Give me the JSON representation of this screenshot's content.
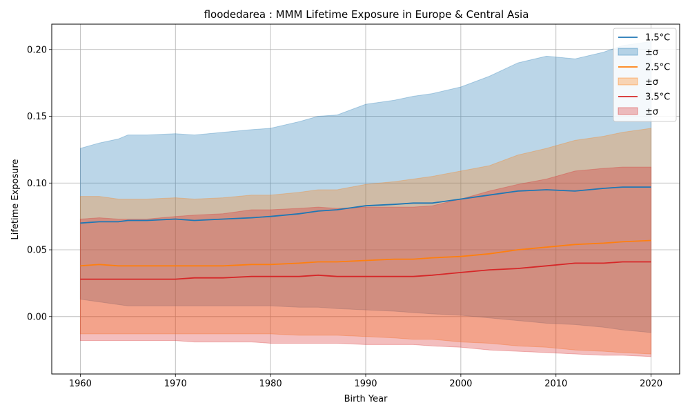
{
  "chart_data": {
    "type": "line",
    "title": "floodedarea : MMM Lifetime Exposure in Europe & Central Asia",
    "xlabel": "Birth Year",
    "ylabel": "Lifetime Exposure",
    "xlim": [
      1957,
      2023
    ],
    "ylim": [
      -0.043,
      0.219
    ],
    "xticks": [
      1960,
      1970,
      1980,
      1990,
      2000,
      2010,
      2020
    ],
    "yticks": [
      0.0,
      0.05,
      0.1,
      0.15,
      0.2
    ],
    "ytick_labels": [
      "0.00",
      "0.05",
      "0.10",
      "0.15",
      "0.20"
    ],
    "grid": true,
    "legend_position": "top-right",
    "x": [
      1960,
      1962,
      1964,
      1965,
      1967,
      1970,
      1972,
      1975,
      1978,
      1980,
      1983,
      1985,
      1987,
      1990,
      1993,
      1995,
      1997,
      2000,
      2003,
      2006,
      2009,
      2012,
      2015,
      2017,
      2020
    ],
    "series": [
      {
        "name": "1.5°C",
        "band_label": "±σ",
        "color": "#1f77b4",
        "values": [
          0.07,
          0.071,
          0.071,
          0.072,
          0.072,
          0.073,
          0.072,
          0.073,
          0.074,
          0.075,
          0.077,
          0.079,
          0.08,
          0.083,
          0.084,
          0.085,
          0.085,
          0.088,
          0.091,
          0.094,
          0.095,
          0.094,
          0.096,
          0.097,
          0.097
        ],
        "upper": [
          0.126,
          0.13,
          0.133,
          0.136,
          0.136,
          0.137,
          0.136,
          0.138,
          0.14,
          0.141,
          0.146,
          0.15,
          0.151,
          0.159,
          0.162,
          0.165,
          0.167,
          0.172,
          0.18,
          0.19,
          0.195,
          0.193,
          0.198,
          0.203,
          0.206
        ],
        "lower": [
          0.013,
          0.011,
          0.009,
          0.008,
          0.008,
          0.008,
          0.008,
          0.008,
          0.008,
          0.008,
          0.007,
          0.007,
          0.006,
          0.005,
          0.004,
          0.003,
          0.002,
          0.001,
          -0.001,
          -0.003,
          -0.005,
          -0.006,
          -0.008,
          -0.01,
          -0.012
        ]
      },
      {
        "name": "2.5°C",
        "band_label": "±σ",
        "color": "#ff7f0e",
        "values": [
          0.038,
          0.039,
          0.038,
          0.038,
          0.038,
          0.038,
          0.038,
          0.038,
          0.039,
          0.039,
          0.04,
          0.041,
          0.041,
          0.042,
          0.043,
          0.043,
          0.044,
          0.045,
          0.047,
          0.05,
          0.052,
          0.054,
          0.055,
          0.056,
          0.057
        ],
        "upper": [
          0.09,
          0.09,
          0.088,
          0.088,
          0.088,
          0.089,
          0.088,
          0.089,
          0.091,
          0.091,
          0.093,
          0.095,
          0.095,
          0.099,
          0.101,
          0.103,
          0.105,
          0.109,
          0.113,
          0.121,
          0.126,
          0.132,
          0.135,
          0.138,
          0.141
        ],
        "lower": [
          -0.013,
          -0.013,
          -0.013,
          -0.013,
          -0.013,
          -0.013,
          -0.013,
          -0.013,
          -0.013,
          -0.013,
          -0.014,
          -0.014,
          -0.014,
          -0.015,
          -0.016,
          -0.017,
          -0.017,
          -0.019,
          -0.02,
          -0.022,
          -0.023,
          -0.025,
          -0.026,
          -0.027,
          -0.028
        ]
      },
      {
        "name": "3.5°C",
        "band_label": "±σ",
        "color": "#d62728",
        "values": [
          0.028,
          0.028,
          0.028,
          0.028,
          0.028,
          0.028,
          0.029,
          0.029,
          0.03,
          0.03,
          0.03,
          0.031,
          0.03,
          0.03,
          0.03,
          0.03,
          0.031,
          0.033,
          0.035,
          0.036,
          0.038,
          0.04,
          0.04,
          0.041,
          0.041
        ],
        "upper": [
          0.073,
          0.074,
          0.073,
          0.073,
          0.073,
          0.075,
          0.076,
          0.077,
          0.08,
          0.08,
          0.081,
          0.082,
          0.081,
          0.082,
          0.082,
          0.082,
          0.083,
          0.088,
          0.094,
          0.099,
          0.103,
          0.109,
          0.111,
          0.112,
          0.112
        ],
        "lower": [
          -0.018,
          -0.018,
          -0.018,
          -0.018,
          -0.018,
          -0.018,
          -0.019,
          -0.019,
          -0.019,
          -0.02,
          -0.02,
          -0.02,
          -0.02,
          -0.021,
          -0.021,
          -0.021,
          -0.022,
          -0.023,
          -0.025,
          -0.026,
          -0.027,
          -0.028,
          -0.029,
          -0.029,
          -0.03
        ]
      }
    ]
  }
}
